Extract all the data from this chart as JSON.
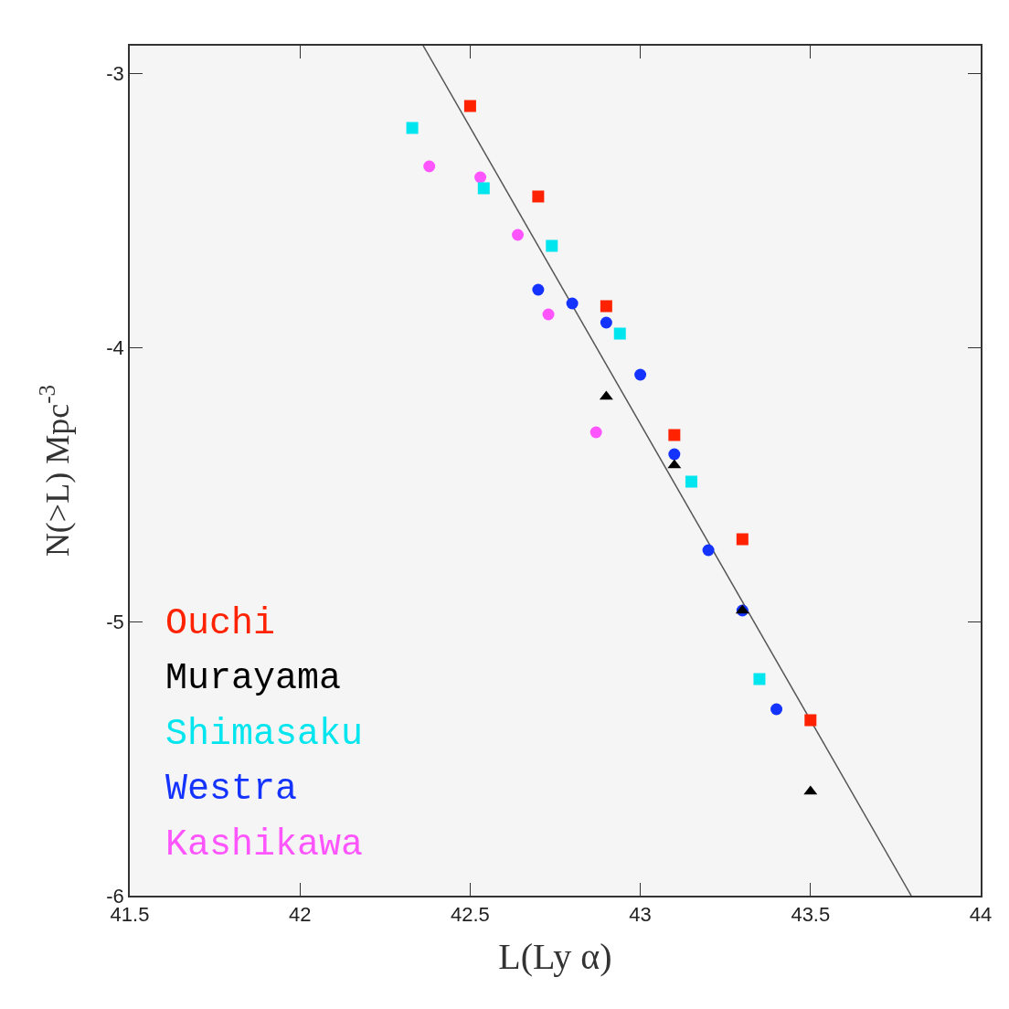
{
  "chart_data": {
    "type": "scatter",
    "xlabel": "L(Ly α)",
    "ylabel": "N(>L) Mpc$^{-3}$",
    "xlim": [
      41.5,
      44
    ],
    "ylim": [
      -6,
      -2.9
    ],
    "xticks": [
      41.5,
      42,
      42.5,
      43,
      43.5,
      44
    ],
    "yticks": [
      -3,
      -4,
      -5,
      -6
    ],
    "grid": false,
    "legend": "bottom left",
    "series": [
      {
        "name": "Ouchi",
        "color": "#ff2200",
        "marker": "square",
        "x": [
          42.5,
          42.7,
          42.9,
          43.1,
          43.3,
          43.5
        ],
        "values": [
          -3.12,
          -3.45,
          -3.85,
          -4.32,
          -4.7,
          -5.36
        ]
      },
      {
        "name": "Murayama",
        "color": "#000000",
        "marker": "triangle",
        "x": [
          42.9,
          43.1,
          43.3,
          43.5
        ],
        "values": [
          -4.18,
          -4.43,
          -4.96,
          -5.62
        ]
      },
      {
        "name": "Shimasaku",
        "color": "#00e5ee",
        "marker": "square",
        "x": [
          42.33,
          42.54,
          42.74,
          42.94,
          43.15,
          43.35
        ],
        "values": [
          -3.2,
          -3.42,
          -3.63,
          -3.95,
          -4.49,
          -5.21
        ]
      },
      {
        "name": "Westra",
        "color": "#1533ff",
        "marker": "circle",
        "x": [
          42.7,
          42.8,
          42.9,
          43,
          43.1,
          43.2,
          43.3,
          43.4
        ],
        "values": [
          -3.79,
          -3.84,
          -3.91,
          -4.1,
          -4.39,
          -4.74,
          -4.96,
          -5.32
        ]
      },
      {
        "name": "Kashikawa",
        "color": "#ff55ff",
        "marker": "circle",
        "x": [
          42.38,
          42.53,
          42.64,
          42.73,
          42.87
        ],
        "values": [
          -3.34,
          -3.38,
          -3.59,
          -3.88,
          -4.31
        ]
      },
      {
        "type": "line",
        "color": "#555555",
        "marker": "none",
        "x": [
          42.362,
          43.796
        ],
        "values": [
          -2.9,
          -6
        ]
      }
    ]
  }
}
